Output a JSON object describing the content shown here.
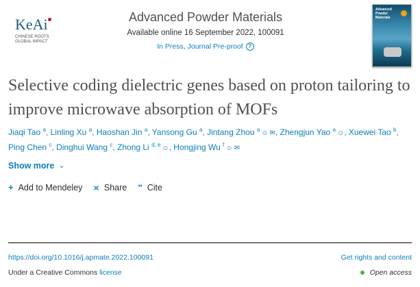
{
  "logo": {
    "name": "KeAi",
    "tagline_1": "CHINESE ROOTS",
    "tagline_2": "GLOBAL IMPACT"
  },
  "journal": {
    "title": "Advanced Powder Materials",
    "available": "Available online 16 September 2022, 100091",
    "status": "In Press, Journal Pre-proof",
    "help_icon": "question-circle-icon"
  },
  "cover": {
    "title": "Advanced Powder Materials"
  },
  "article": {
    "title": "Selective coding dielectric genes based on proton tailoring to improve microwave absorption of MOFs"
  },
  "authors": [
    {
      "name": "Jiaqi Tao",
      "aff": "a"
    },
    {
      "name": "Linling Xu",
      "aff": "a"
    },
    {
      "name": "Haoshan Jin",
      "aff": "a"
    },
    {
      "name": "Yansong Gu",
      "aff": "a"
    },
    {
      "name": "Jintang Zhou",
      "aff": "a",
      "person": true,
      "email": true
    },
    {
      "name": "Zhengjun Yao",
      "aff": "a",
      "person": true
    },
    {
      "name": "Xuewei Tao",
      "aff": "b"
    },
    {
      "name": "Ping Chen",
      "aff": "c"
    },
    {
      "name": "Dinghui Wang",
      "aff": "c"
    },
    {
      "name": "Zhong Li",
      "aff": "d, e",
      "person": true
    },
    {
      "name": "Hongjing Wu",
      "aff": "f",
      "person": true,
      "email": true
    }
  ],
  "show_more": "Show more",
  "actions": {
    "mendeley": "Add to Mendeley",
    "share": "Share",
    "cite": "Cite"
  },
  "doi": "https://doi.org/10.1016/j.apmate.2022.100091",
  "rights": "Get rights and content",
  "license_prefix": "Under a Creative Commons ",
  "license_link": "license",
  "open_access": "Open access",
  "colors": {
    "link": "#0c7dbb",
    "open_access_dot": "#4ab04a",
    "title": "#505050"
  }
}
